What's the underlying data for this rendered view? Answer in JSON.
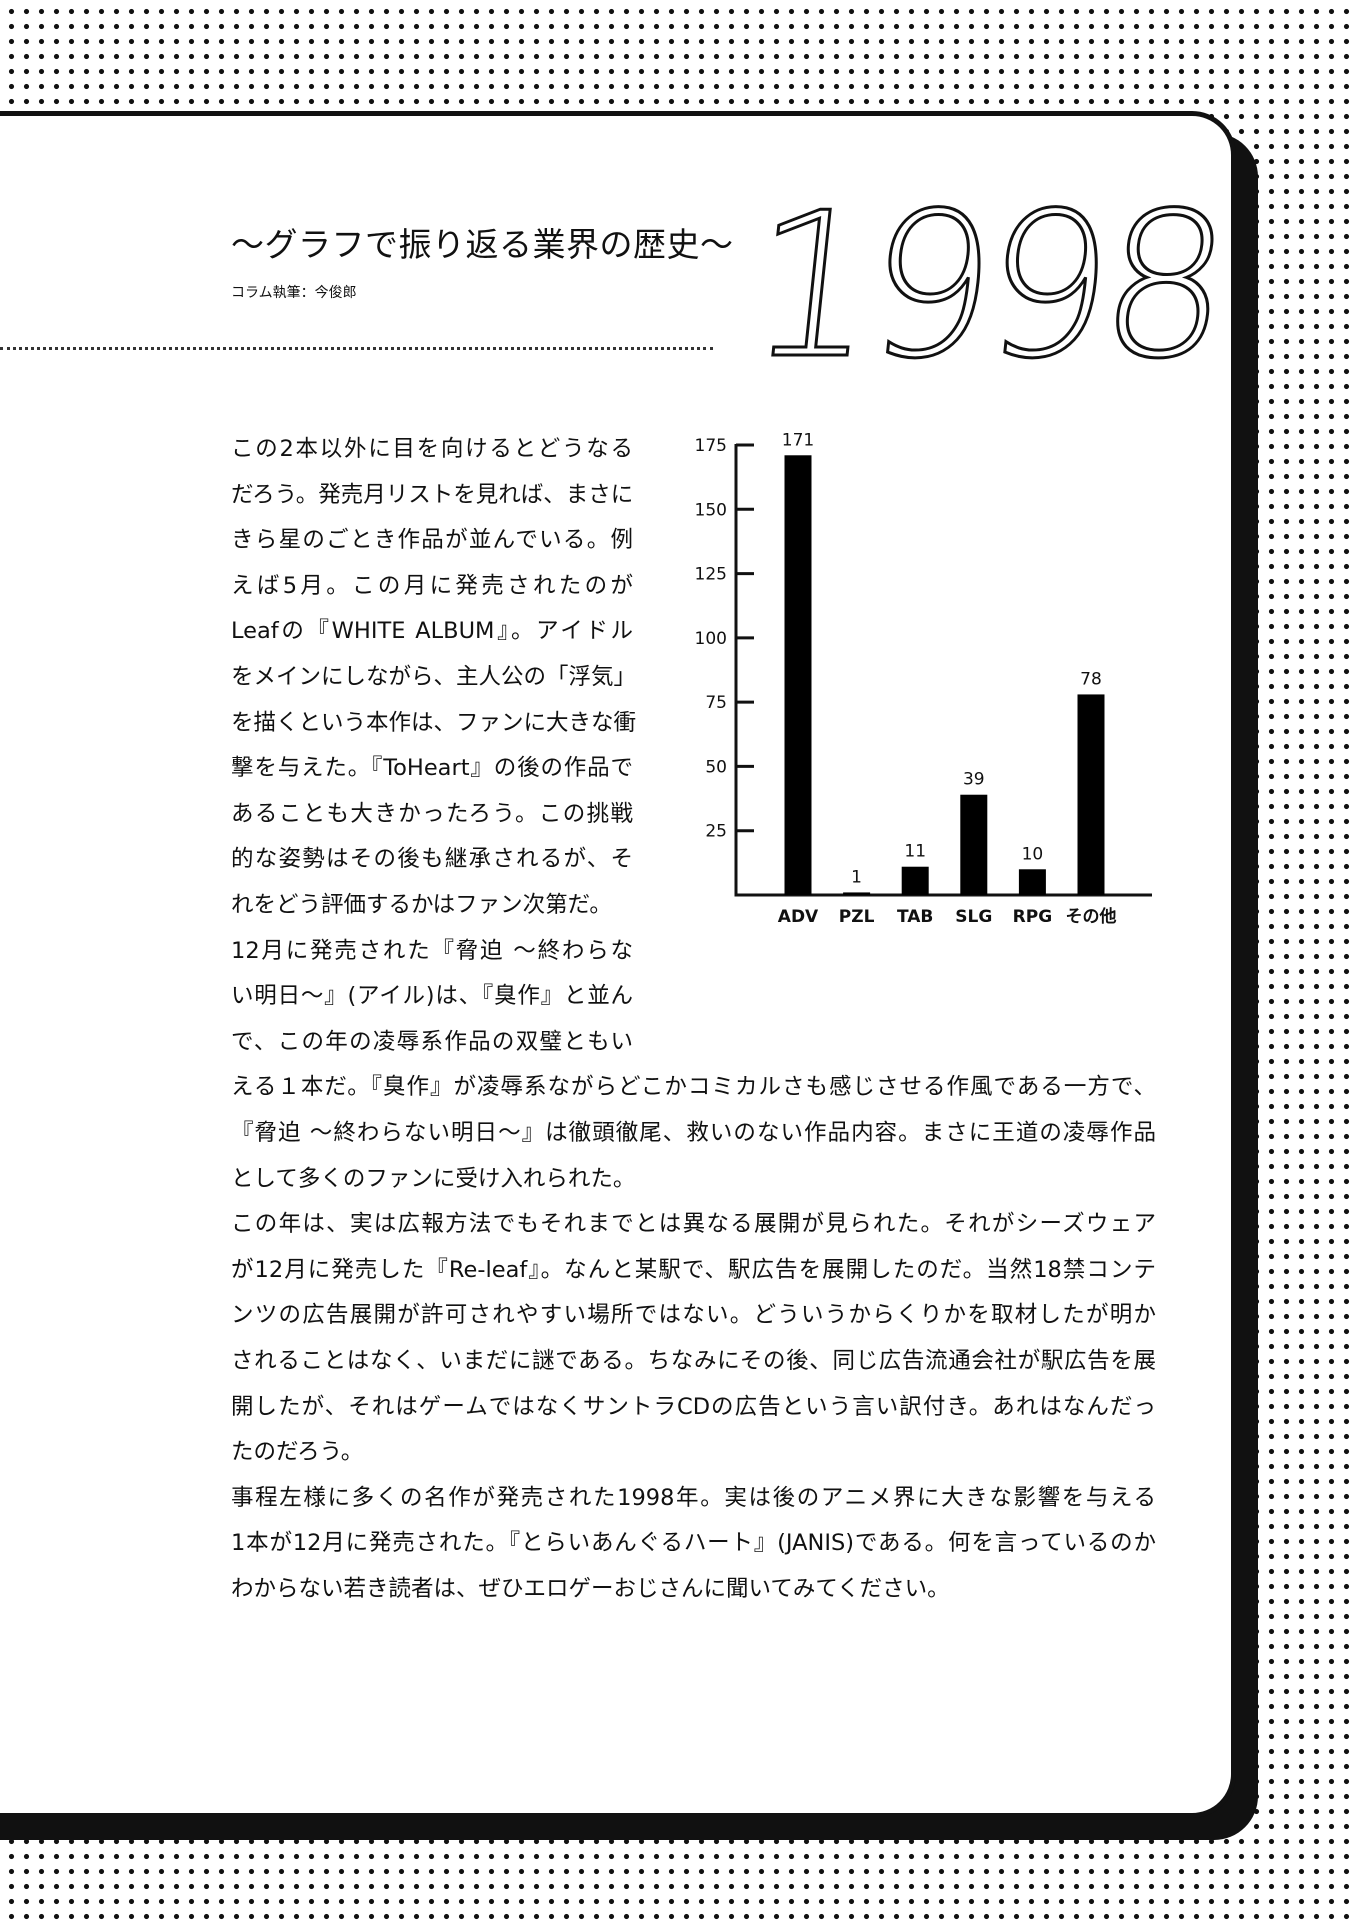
{
  "header": {
    "title": "〜グラフで振り返る業界の歴史〜",
    "byline": "コラム執筆：今俊郎",
    "year": "1998"
  },
  "body": {
    "lines": [
      "この2本以外に目を向けるとどうなる",
      "だろう。発売月リストを見れば、まさに",
      "きら星のごとき作品が並んでいる。例",
      "えば5月。この月に発売されたのが",
      "Leafの『WHITE ALBUM』。アイドル",
      "をメインにしながら、主人公の「浮気」",
      "を描くという本作は、ファンに大きな衝",
      "撃を与えた。『ToHeart』の後の作品で",
      "あることも大きかったろう。この挑戦",
      "的な姿勢はその後も継承されるが、そ",
      "れをどう評価するかはファン次第だ。",
      "12月に発売された『脅迫 〜終わらな",
      "い明日〜』(アイル)は、『臭作』と並ん",
      "で、この年の凌辱系作品の双璧ともい",
      "える１本だ。『臭作』が凌辱系ながらどこかコミカルさも感じさせる作風である一方で、",
      "『脅迫 〜終わらない明日〜』は徹頭徹尾、救いのない作品内容。まさに王道の凌辱作品",
      "として多くのファンに受け入れられた。",
      "この年は、実は広報方法でもそれまでとは異なる展開が見られた。それがシーズウェア",
      "が12月に発売した『Re-leaf』。なんと某駅で、駅広告を展開したのだ。当然18禁コンテ",
      "ンツの広告展開が許可されやすい場所ではない。どういうからくりかを取材したが明か",
      "されることはなく、いまだに謎である。ちなみにその後、同じ広告流通会社が駅広告を展",
      "開したが、それはゲームではなくサントラCDの広告という言い訳付き。あれはなんだっ",
      "たのだろう。",
      "事程左様に多くの名作が発売された1998年。実は後のアニメ界に大きな影響を与える",
      "1本が12月に発売された。『とらいあんぐるハート』(JANIS)である。何を言っているのか",
      "わからない若き読者は、ぜひエロゲーおじさんに聞いてみてください。"
    ]
  },
  "chart_data": {
    "type": "bar",
    "categories": [
      "ADV",
      "PZL",
      "TAB",
      "SLG",
      "RPG",
      "その他"
    ],
    "values": [
      171,
      1,
      11,
      39,
      10,
      78
    ],
    "yticks": [
      25,
      50,
      75,
      100,
      125,
      150,
      175
    ],
    "ylim": [
      0,
      175
    ],
    "grid": false,
    "bar_color": "#000000"
  }
}
